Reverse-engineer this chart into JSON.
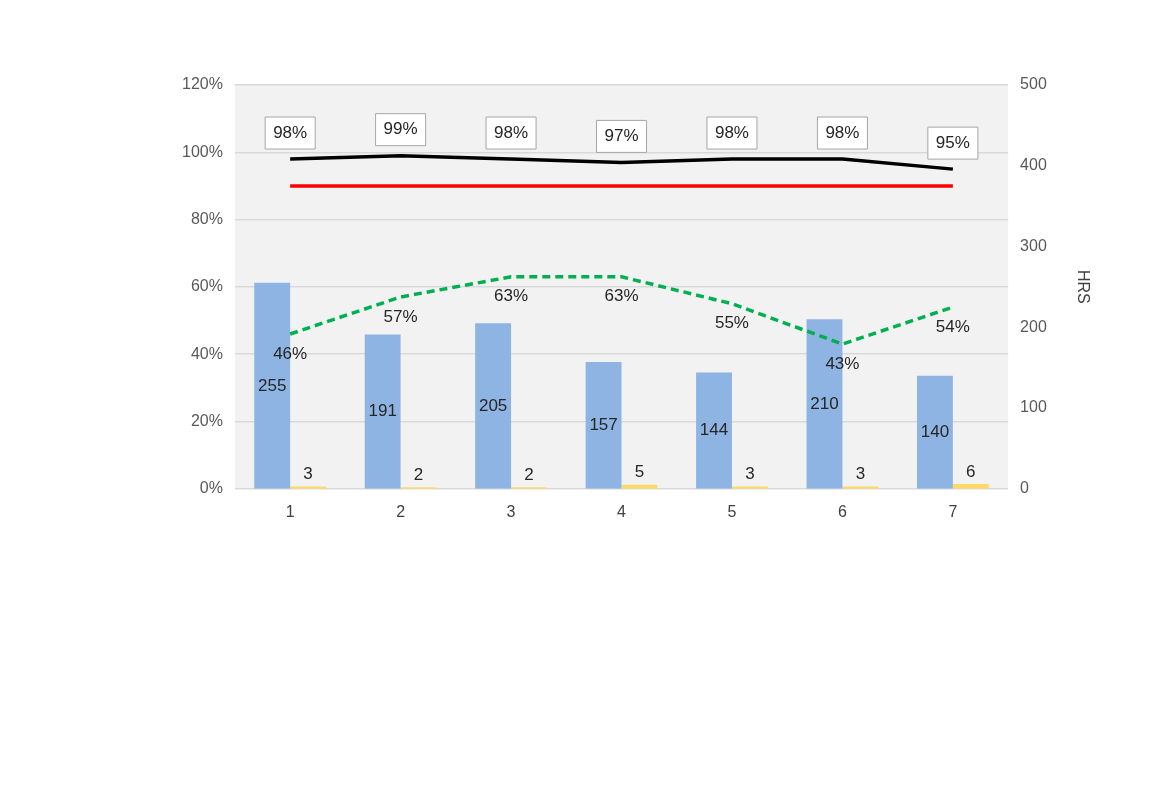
{
  "chart_data": {
    "type": "bar",
    "categories": [
      "1",
      "2",
      "3",
      "4",
      "5",
      "6",
      "7"
    ],
    "series": [
      {
        "axis": "y2",
        "color": "#8eb4e3",
        "values": [
          255,
          191,
          205,
          157,
          144,
          210,
          140
        ],
        "value_labels": [
          "255",
          "191",
          "205",
          "157",
          "144",
          "210",
          "140"
        ]
      },
      {
        "axis": "y2",
        "color": "#ffd966",
        "values": [
          3,
          2,
          2,
          5,
          3,
          3,
          6
        ],
        "value_labels": [
          "3",
          "2",
          "2",
          "5",
          "3",
          "3",
          "6"
        ]
      },
      {
        "type": "line",
        "color": "#000000",
        "values": [
          98,
          99,
          98,
          97,
          98,
          98,
          95
        ],
        "value_labels": [
          "98%",
          "99%",
          "98%",
          "97%",
          "98%",
          "98%",
          "95%"
        ]
      },
      {
        "type": "line",
        "color": "#ff0000",
        "values": [
          90,
          90,
          90,
          90,
          90,
          90,
          90
        ]
      },
      {
        "type": "line",
        "color": "#00b050",
        "line_style": "dashed",
        "values": [
          46,
          57,
          63,
          63,
          55,
          43,
          54
        ],
        "value_labels": [
          "46%",
          "57%",
          "63%",
          "63%",
          "55%",
          "43%",
          "54%"
        ]
      }
    ],
    "ylim": [
      0,
      120
    ],
    "yticks": [
      {
        "value": 0,
        "label": "0%"
      },
      {
        "value": 20,
        "label": "20%"
      },
      {
        "value": 40,
        "label": "40%"
      },
      {
        "value": 60,
        "label": "60%"
      },
      {
        "value": 80,
        "label": "80%"
      },
      {
        "value": 100,
        "label": "100%"
      },
      {
        "value": 120,
        "label": "120%"
      }
    ],
    "y2lim": [
      0,
      500
    ],
    "y2ticks": [
      0,
      100,
      200,
      300,
      400,
      500
    ],
    "y2label": "HRS",
    "grid": "y",
    "legend": false,
    "marker": "none"
  }
}
